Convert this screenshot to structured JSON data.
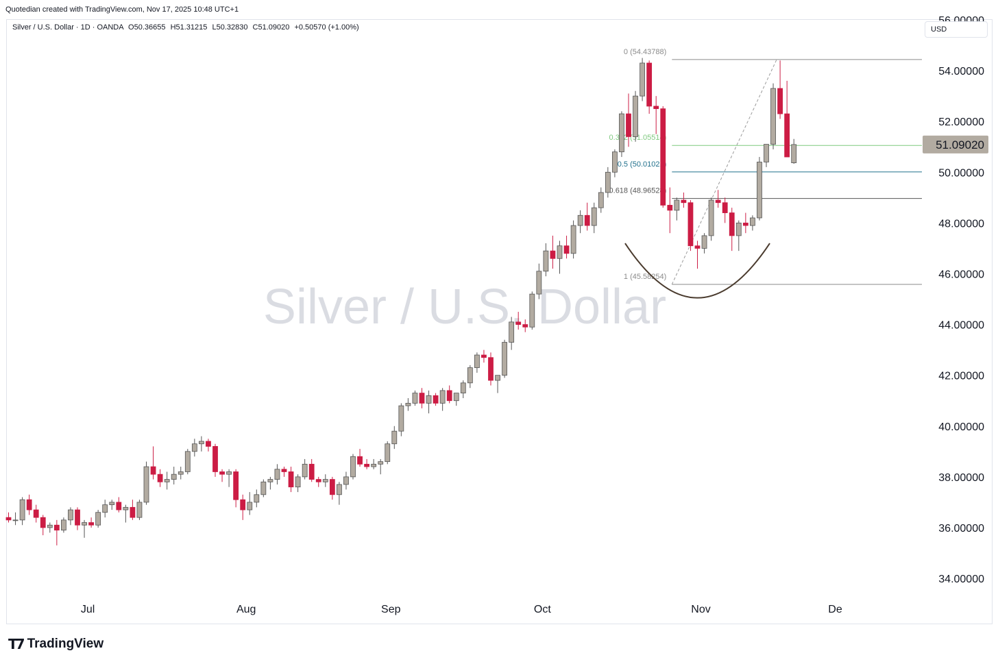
{
  "header": {
    "credit": "Quotedian created with TradingView.com, Nov 17, 2025 10:48 UTC+1",
    "symbol": "Silver / U.S. Dollar · 1D · OANDA",
    "ohlc": {
      "o_label": "O",
      "o": "50.36655",
      "h_label": "H",
      "h": "51.31215",
      "l_label": "L",
      "l": "50.32830",
      "c_label": "C",
      "c": "51.09020",
      "change": "+0.50570 (+1.00%)"
    },
    "currency": "USD"
  },
  "watermark": "Silver / U.S. Dollar",
  "footer": {
    "brand": "TradingView",
    "logo_icon": "tradingview-logo-icon"
  },
  "colors": {
    "up": "#b2aba1",
    "down": "#cc1c44",
    "up_border": "#555555",
    "fib_0": "#8a8a8a",
    "fib_382": "#7fc97f",
    "fib_5": "#1f6f8b",
    "fib_618": "#555555",
    "fib_1": "#8a8a8a",
    "arc": "#4a3b2e",
    "price_tag": "#b2aba1"
  },
  "chart_data": {
    "type": "candlestick",
    "ylim": [
      33.3,
      56.0
    ],
    "y_ticks": [
      {
        "v": 34,
        "label": "34.00000"
      },
      {
        "v": 36,
        "label": "36.00000"
      },
      {
        "v": 38,
        "label": "38.00000"
      },
      {
        "v": 40,
        "label": "40.00000"
      },
      {
        "v": 42,
        "label": "42.00000"
      },
      {
        "v": 44,
        "label": "44.00000"
      },
      {
        "v": 46,
        "label": "46.00000"
      },
      {
        "v": 48,
        "label": "48.00000"
      },
      {
        "v": 50,
        "label": "50.00000"
      },
      {
        "v": 52,
        "label": "52.00000"
      },
      {
        "v": 54,
        "label": "54.00000"
      },
      {
        "v": 56,
        "label": "56.00000"
      }
    ],
    "x_ticks": [
      {
        "i": 11.5,
        "label": "Jul"
      },
      {
        "i": 34.5,
        "label": "Aug"
      },
      {
        "i": 55.5,
        "label": "Sep"
      },
      {
        "i": 77.5,
        "label": "Oct"
      },
      {
        "i": 100.5,
        "label": "Nov"
      },
      {
        "i": 120,
        "label": "De"
      }
    ],
    "last_price": {
      "value": 51.0902,
      "label": "51.09020"
    },
    "fibonacci": [
      {
        "ratio": "0",
        "label": "0 (54.43788)",
        "value": 54.43788
      },
      {
        "ratio": "0.382",
        "label": "0.382 (51.05514)",
        "value": 51.05514
      },
      {
        "ratio": "0.5",
        "label": "0.5 (50.01021)",
        "value": 50.01021
      },
      {
        "ratio": "0.618",
        "label": "0.618 (48.96528)",
        "value": 48.96528
      },
      {
        "ratio": "1",
        "label": "1 (45.58254)",
        "value": 45.58254
      }
    ],
    "fib_anchor": {
      "from_i": 96.3,
      "to_i": 111.5
    },
    "arc": {
      "from_i": 89.5,
      "to_i": 110.5,
      "left_y": 47.2,
      "bottom_y": 45.05,
      "right_y": 47.2
    },
    "candles": [
      [
        36.4,
        36.6,
        36.2,
        36.3
      ],
      [
        36.3,
        36.6,
        36.1,
        36.3
      ],
      [
        36.3,
        37.2,
        36.1,
        37.1
      ],
      [
        37.1,
        37.3,
        36.5,
        36.7
      ],
      [
        36.7,
        36.9,
        36.2,
        36.4
      ],
      [
        36.4,
        36.5,
        35.7,
        36.0
      ],
      [
        36.0,
        36.2,
        35.8,
        36.1
      ],
      [
        36.1,
        36.3,
        35.3,
        35.9
      ],
      [
        35.9,
        36.4,
        35.8,
        36.3
      ],
      [
        36.3,
        36.8,
        36.1,
        36.7
      ],
      [
        36.7,
        36.8,
        35.9,
        36.1
      ],
      [
        36.1,
        36.3,
        35.6,
        36.2
      ],
      [
        36.2,
        36.4,
        36.0,
        36.1
      ],
      [
        36.1,
        36.7,
        36.0,
        36.6
      ],
      [
        36.6,
        37.1,
        36.4,
        36.9
      ],
      [
        36.9,
        37.1,
        36.7,
        37.0
      ],
      [
        37.0,
        37.2,
        36.6,
        36.7
      ],
      [
        36.7,
        36.9,
        36.2,
        36.8
      ],
      [
        36.8,
        37.1,
        36.3,
        36.4
      ],
      [
        36.4,
        37.1,
        36.3,
        37.0
      ],
      [
        37.0,
        38.6,
        36.9,
        38.4
      ],
      [
        38.4,
        39.2,
        37.9,
        38.1
      ],
      [
        38.1,
        38.3,
        37.6,
        37.8
      ],
      [
        37.8,
        38.2,
        37.5,
        37.9
      ],
      [
        37.9,
        38.4,
        37.7,
        38.1
      ],
      [
        38.1,
        38.4,
        37.9,
        38.2
      ],
      [
        38.2,
        39.1,
        38.1,
        39.0
      ],
      [
        39.0,
        39.5,
        38.8,
        39.3
      ],
      [
        39.3,
        39.6,
        39.0,
        39.4
      ],
      [
        39.4,
        39.5,
        39.0,
        39.2
      ],
      [
        39.2,
        39.3,
        38.0,
        38.2
      ],
      [
        38.2,
        38.3,
        37.8,
        38.1
      ],
      [
        38.1,
        38.3,
        37.6,
        38.2
      ],
      [
        38.2,
        38.3,
        36.8,
        37.1
      ],
      [
        37.1,
        37.3,
        36.3,
        36.7
      ],
      [
        36.7,
        37.4,
        36.5,
        37.0
      ],
      [
        37.0,
        37.5,
        36.8,
        37.3
      ],
      [
        37.3,
        37.9,
        37.2,
        37.8
      ],
      [
        37.8,
        38.0,
        37.5,
        37.9
      ],
      [
        37.9,
        38.5,
        37.7,
        38.3
      ],
      [
        38.3,
        38.4,
        38.0,
        38.2
      ],
      [
        38.2,
        38.4,
        37.4,
        37.6
      ],
      [
        37.6,
        38.1,
        37.4,
        38.0
      ],
      [
        38.0,
        38.7,
        37.9,
        38.5
      ],
      [
        38.5,
        38.7,
        37.8,
        37.9
      ],
      [
        37.9,
        38.0,
        37.6,
        37.8
      ],
      [
        37.8,
        38.1,
        37.6,
        37.9
      ],
      [
        37.9,
        38.0,
        37.1,
        37.3
      ],
      [
        37.3,
        37.8,
        36.9,
        37.7
      ],
      [
        37.7,
        38.2,
        37.5,
        38.0
      ],
      [
        38.0,
        38.9,
        37.9,
        38.8
      ],
      [
        38.8,
        39.1,
        38.4,
        38.5
      ],
      [
        38.5,
        38.7,
        38.3,
        38.4
      ],
      [
        38.4,
        38.7,
        38.3,
        38.5
      ],
      [
        38.5,
        38.7,
        38.1,
        38.6
      ],
      [
        38.6,
        39.4,
        38.5,
        39.3
      ],
      [
        39.3,
        40.0,
        39.1,
        39.8
      ],
      [
        39.8,
        40.9,
        39.6,
        40.8
      ],
      [
        40.8,
        41.1,
        40.6,
        40.9
      ],
      [
        40.9,
        41.4,
        40.8,
        41.3
      ],
      [
        41.3,
        41.5,
        40.7,
        40.9
      ],
      [
        40.9,
        41.4,
        40.5,
        41.2
      ],
      [
        41.2,
        41.3,
        40.8,
        40.9
      ],
      [
        40.9,
        41.5,
        40.6,
        41.4
      ],
      [
        41.4,
        41.6,
        40.9,
        41.0
      ],
      [
        41.0,
        41.3,
        40.8,
        41.3
      ],
      [
        41.3,
        41.8,
        41.1,
        41.7
      ],
      [
        41.7,
        42.4,
        41.5,
        42.3
      ],
      [
        42.3,
        42.9,
        42.1,
        42.8
      ],
      [
        42.8,
        43.0,
        42.5,
        42.7
      ],
      [
        42.7,
        42.9,
        41.6,
        41.8
      ],
      [
        41.8,
        42.0,
        41.3,
        42.0
      ],
      [
        42.0,
        43.4,
        41.9,
        43.3
      ],
      [
        43.3,
        44.3,
        43.0,
        44.1
      ],
      [
        44.1,
        44.5,
        43.8,
        44.0
      ],
      [
        44.0,
        44.2,
        43.7,
        43.9
      ],
      [
        43.9,
        45.3,
        43.8,
        45.2
      ],
      [
        45.2,
        46.4,
        45.0,
        46.1
      ],
      [
        46.1,
        47.2,
        45.9,
        46.9
      ],
      [
        46.9,
        47.5,
        46.2,
        46.6
      ],
      [
        46.6,
        47.3,
        46.0,
        47.1
      ],
      [
        47.1,
        47.5,
        46.6,
        46.8
      ],
      [
        46.8,
        48.1,
        46.6,
        47.9
      ],
      [
        47.9,
        48.5,
        47.6,
        48.3
      ],
      [
        48.3,
        48.8,
        47.7,
        47.9
      ],
      [
        47.9,
        48.8,
        47.6,
        48.6
      ],
      [
        48.6,
        49.4,
        48.4,
        49.2
      ],
      [
        49.2,
        50.2,
        49.0,
        50.0
      ],
      [
        50.0,
        50.9,
        49.8,
        50.8
      ],
      [
        50.8,
        52.4,
        50.6,
        52.3
      ],
      [
        52.3,
        53.1,
        51.0,
        51.4
      ],
      [
        51.4,
        53.2,
        51.2,
        53.0
      ],
      [
        53.0,
        54.5,
        52.8,
        54.3
      ],
      [
        54.3,
        54.4,
        52.3,
        52.6
      ],
      [
        52.6,
        53.0,
        51.5,
        52.5
      ],
      [
        52.5,
        52.6,
        48.6,
        48.7
      ],
      [
        48.7,
        49.4,
        47.6,
        48.5
      ],
      [
        48.5,
        49.0,
        48.1,
        48.9
      ],
      [
        48.9,
        49.2,
        48.6,
        48.8
      ],
      [
        48.8,
        48.9,
        46.9,
        47.1
      ],
      [
        47.1,
        47.3,
        46.2,
        47.0
      ],
      [
        47.0,
        47.6,
        46.8,
        47.5
      ],
      [
        47.5,
        49.0,
        47.3,
        48.9
      ],
      [
        48.9,
        49.3,
        48.6,
        48.8
      ],
      [
        48.8,
        49.0,
        48.0,
        48.4
      ],
      [
        48.4,
        48.6,
        46.9,
        47.5
      ],
      [
        47.5,
        48.1,
        46.9,
        48.0
      ],
      [
        48.0,
        48.4,
        47.6,
        47.9
      ],
      [
        47.9,
        48.3,
        47.7,
        48.2
      ],
      [
        48.2,
        50.6,
        48.1,
        50.4
      ],
      [
        50.4,
        51.1,
        50.2,
        51.1
      ],
      [
        51.1,
        53.5,
        50.9,
        53.3
      ],
      [
        53.3,
        54.4,
        52.1,
        52.3
      ],
      [
        52.3,
        53.6,
        50.6,
        50.6
      ],
      [
        50.37,
        51.31,
        50.33,
        51.09
      ]
    ]
  }
}
